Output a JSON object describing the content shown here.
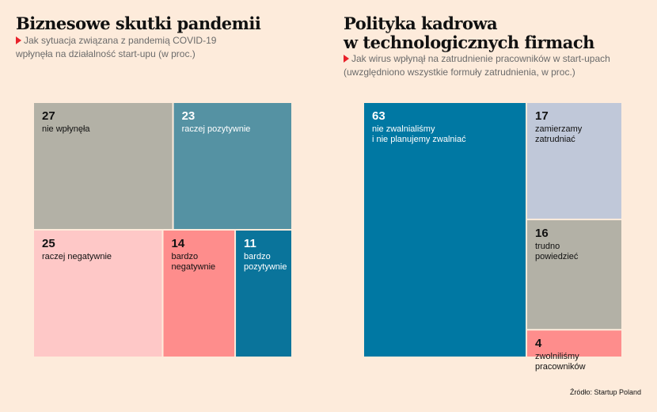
{
  "left": {
    "title_lines": [
      "Biznesowe skutki pandemii"
    ],
    "subtitle_lines": [
      "Jak sytuacja związana z pandemią COVID-19",
      "wpłynęła na działalność start-upu (w proc.)"
    ]
  },
  "right": {
    "title_lines": [
      "Polityka kadrowa",
      "w technologicznych firmach"
    ],
    "subtitle_lines": [
      "Jak wirus wpłynął na zatrudnienie pracowników w start-upach",
      "(uwzględniono wszystkie formuły zatrudnienia, w proc.)"
    ]
  },
  "source": "Źródło: Startup Poland",
  "colors": {
    "background": "#fdebdb",
    "accent_triangle": "#e8212a"
  },
  "chart_data": [
    {
      "type": "treemap",
      "title": "Biznesowe skutki pandemii",
      "subtitle": "Jak sytuacja związana z pandemią COVID-19 wpłynęła na działalność start-upu (w proc.)",
      "unit": "%",
      "items": [
        {
          "value": 27,
          "label_lines": [
            "nie wpłynęła"
          ],
          "color": "#b3b1a6",
          "text_color": "#111111"
        },
        {
          "value": 23,
          "label_lines": [
            "raczej pozytywnie"
          ],
          "color": "#5592a3",
          "text_color": "#ffffff"
        },
        {
          "value": 25,
          "label_lines": [
            "raczej negatywnie"
          ],
          "color": "#fec8c7",
          "text_color": "#111111"
        },
        {
          "value": 14,
          "label_lines": [
            "bardzo",
            "negatywnie"
          ],
          "color": "#fe8d8c",
          "text_color": "#111111"
        },
        {
          "value": 11,
          "label_lines": [
            "bardzo",
            "pozytywnie"
          ],
          "color": "#0a749b",
          "text_color": "#ffffff"
        }
      ]
    },
    {
      "type": "treemap",
      "title": "Polityka kadrowa w technologicznych firmach",
      "subtitle": "Jak wirus wpłynął na zatrudnienie pracowników w start-upach (uwzględniono wszystkie formuły zatrudnienia, w proc.)",
      "unit": "%",
      "items": [
        {
          "value": 63,
          "label_lines": [
            "nie zwalnialiśmy",
            "i nie planujemy zwalniać"
          ],
          "color": "#0078a3",
          "text_color": "#ffffff"
        },
        {
          "value": 17,
          "label_lines": [
            "zamierzamy",
            "zatrudniać"
          ],
          "color": "#c0c8d9",
          "text_color": "#111111"
        },
        {
          "value": 16,
          "label_lines": [
            "trudno",
            "powiedzieć"
          ],
          "color": "#b3b1a6",
          "text_color": "#111111"
        },
        {
          "value": 4,
          "label_lines": [
            "zwolniliśmy",
            "pracowników"
          ],
          "color": "#fe8d8c",
          "text_color": "#111111"
        }
      ]
    }
  ]
}
